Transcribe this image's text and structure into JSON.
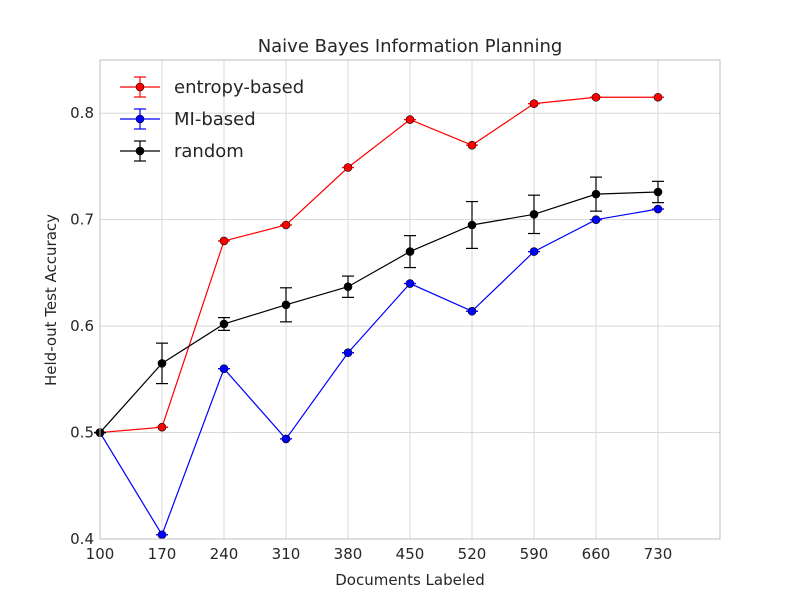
{
  "chart_data": {
    "type": "line",
    "title": "Naive Bayes Information Planning",
    "xlabel": "Documents Labeled",
    "ylabel": "Held-out Test Accuracy",
    "x": [
      100,
      170,
      240,
      310,
      380,
      450,
      520,
      590,
      660,
      730
    ],
    "x_tick_labels": [
      "100",
      "170",
      "240",
      "310",
      "380",
      "450",
      "520",
      "590",
      "660",
      "730"
    ],
    "y_tick_values": [
      0.4,
      0.5,
      0.6,
      0.7,
      0.8
    ],
    "y_tick_labels": [
      "0.4",
      "0.5",
      "0.6",
      "0.7",
      "0.8"
    ],
    "xlim": [
      100,
      800
    ],
    "ylim": [
      0.4,
      0.85
    ],
    "grid": true,
    "legend_position": "top-left",
    "series": [
      {
        "name": "entropy-based",
        "color": "#ff0000",
        "values": [
          0.5,
          0.505,
          0.68,
          0.695,
          0.749,
          0.794,
          0.77,
          0.809,
          0.815,
          0.815
        ],
        "errors": [
          0,
          0,
          0,
          0,
          0,
          0,
          0,
          0,
          0,
          0
        ]
      },
      {
        "name": "MI-based",
        "color": "#0000ff",
        "values": [
          0.5,
          0.404,
          0.56,
          0.494,
          0.575,
          0.64,
          0.614,
          0.67,
          0.7,
          0.71
        ],
        "errors": [
          0,
          0,
          0,
          0,
          0,
          0,
          0,
          0,
          0,
          0
        ]
      },
      {
        "name": "random",
        "color": "#000000",
        "values": [
          0.5,
          0.565,
          0.602,
          0.62,
          0.637,
          0.67,
          0.695,
          0.705,
          0.724,
          0.726
        ],
        "errors": [
          0,
          0.019,
          0.006,
          0.016,
          0.01,
          0.015,
          0.022,
          0.018,
          0.016,
          0.01
        ]
      }
    ]
  }
}
